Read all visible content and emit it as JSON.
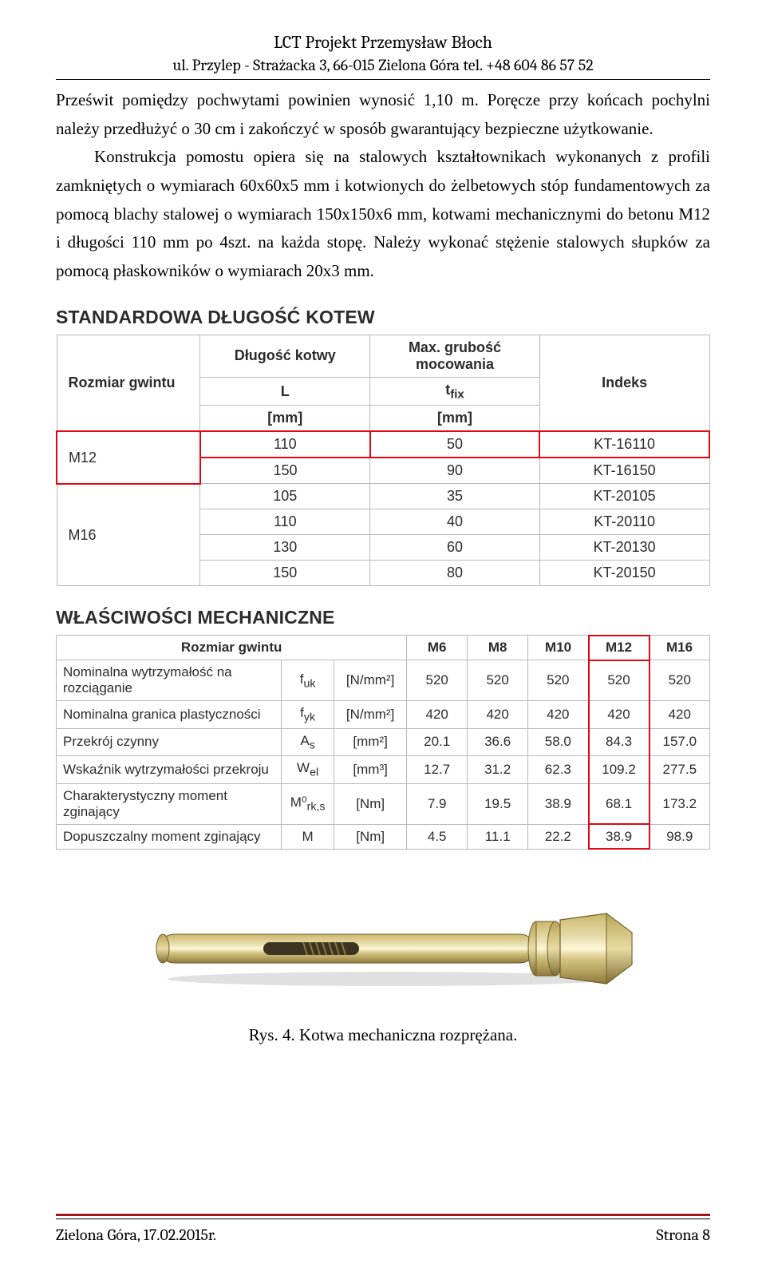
{
  "header": {
    "company": "LCT Projekt Przemysław Błoch",
    "address": "ul. Przylep - Strażacka 3, 66-015 Zielona Góra tel. +48 604 86 57 52"
  },
  "body": {
    "p1": "Prześwit pomiędzy pochwytami powinien wynosić 1,10 m. Poręcze przy końcach pochylni należy przedłużyć o 30 cm i zakończyć w sposób gwarantujący bezpieczne użytkowanie.",
    "p2": "Konstrukcja pomostu opiera się na stalowych kształtownikach wykonanych z profili zamkniętych o wymiarach 60x60x5 mm i kotwionych do żelbetowych stóp fundamentowych za pomocą blachy stalowej o wymiarach 150x150x6 mm, kotwami mechanicznymi do betonu M12 i długości 110 mm po 4szt. na każda stopę. Należy wykonać stężenie stalowych słupków za pomocą płaskowników o wymiarach 20x3 mm."
  },
  "table1": {
    "title": "STANDARDOWA DŁUGOŚĆ KOTEW",
    "headers": {
      "thread": "Rozmiar gwintu",
      "length": "Długość kotwy",
      "lengthSym": "L",
      "lengthUnit": "[mm]",
      "fix": "Max. grubość mocowania",
      "fixSym": "t",
      "fixSub": "fix",
      "fixUnit": "[mm]",
      "index": "Indeks"
    },
    "rows": [
      {
        "thread": "M12",
        "span": 2,
        "l": "110",
        "t": "50",
        "ix": "KT-16110",
        "hl": true
      },
      {
        "l": "150",
        "t": "90",
        "ix": "KT-16150"
      },
      {
        "thread": "M16",
        "span": 4,
        "l": "105",
        "t": "35",
        "ix": "KT-20105"
      },
      {
        "l": "110",
        "t": "40",
        "ix": "KT-20110"
      },
      {
        "l": "130",
        "t": "60",
        "ix": "KT-20130"
      },
      {
        "l": "150",
        "t": "80",
        "ix": "KT-20150"
      }
    ]
  },
  "table2": {
    "title": "WŁAŚCIWOŚCI MECHANICZNE",
    "headers": {
      "thread": "Rozmiar gwintu",
      "sizes": [
        "M6",
        "M8",
        "M10",
        "M12",
        "M16"
      ]
    },
    "rows": [
      {
        "prop": "Nominalna wytrzymałość na rozciąganie",
        "sym": "f",
        "sub": "uk",
        "unit": "[N/mm²]",
        "v": [
          "520",
          "520",
          "520",
          "520",
          "520"
        ]
      },
      {
        "prop": "Nominalna granica plastyczności",
        "sym": "f",
        "sub": "yk",
        "unit": "[N/mm²]",
        "v": [
          "420",
          "420",
          "420",
          "420",
          "420"
        ]
      },
      {
        "prop": "Przekrój czynny",
        "sym": "A",
        "sub": "s",
        "unit": "[mm²]",
        "v": [
          "20.1",
          "36.6",
          "58.0",
          "84.3",
          "157.0"
        ]
      },
      {
        "prop": "Wskaźnik wytrzymałości przekroju",
        "sym": "W",
        "sub": "el",
        "unit": "[mm³]",
        "v": [
          "12.7",
          "31.2",
          "62.3",
          "109.2",
          "277.5"
        ]
      },
      {
        "prop": "Charakterystyczny moment zginający",
        "sym": "M⁰",
        "sub": "rk,s",
        "unit": "[Nm]",
        "v": [
          "7.9",
          "19.5",
          "38.9",
          "68.1",
          "173.2"
        ]
      },
      {
        "prop": "Dopuszczalny moment zginający",
        "sym": "M",
        "sub": "",
        "unit": "[Nm]",
        "v": [
          "4.5",
          "11.1",
          "22.2",
          "38.9",
          "98.9"
        ]
      }
    ],
    "hlCol": 3,
    "hlBottomCells": [
      3
    ]
  },
  "caption": "Rys. 4. Kotwa mechaniczna rozprężana.",
  "footer": {
    "left": "Zielona Góra, 17.02.2015r.",
    "right": "Strona 8"
  },
  "colors": {
    "highlight": "#e30613",
    "footerRule": "#a5121a",
    "cellBorder": "#b9b9b9",
    "text": "#2c2c2c"
  }
}
